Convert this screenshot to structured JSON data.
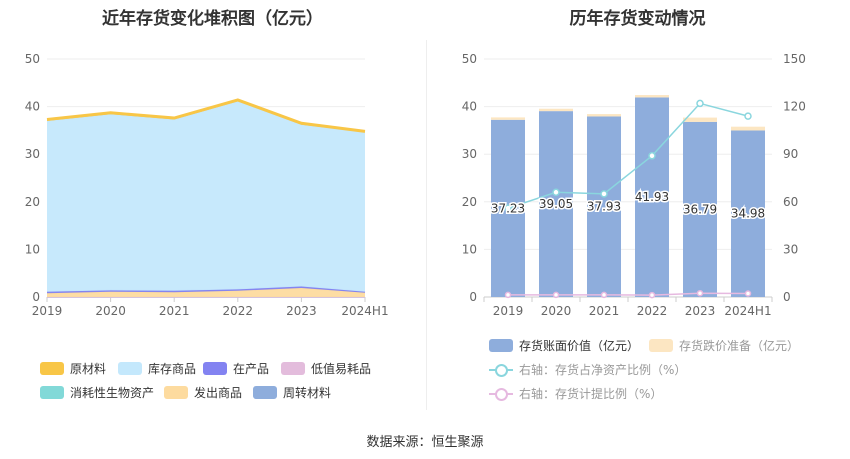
{
  "left_title": "近年存货变化堆积图（亿元）",
  "right_title": "历年存货变动情况",
  "source": "数据来源：恒生聚源",
  "colors": {
    "原材料": "#F8C647",
    "库存商品": "#C4E8FC",
    "在产品": "#8383F1",
    "低值易耗品": "#E3BCDC",
    "消耗性生物资产": "#82D9D8",
    "发出商品": "#FDDB9F",
    "周转材料": "#8EADDC",
    "book_value": "#8EADDC",
    "provision": "#FCE6C2",
    "ratio_line": "#8AD6DE",
    "provision_ratio_line": "#E6B9E0"
  },
  "chart_data": [
    {
      "type": "area",
      "title": "近年存货变化堆积图（亿元）",
      "categories": [
        "2019",
        "2020",
        "2021",
        "2022",
        "2023",
        "2024H1"
      ],
      "ylim": [
        0,
        50
      ],
      "yticks": [
        0,
        10,
        20,
        30,
        40,
        50
      ],
      "stacked": true,
      "series": [
        {
          "name": "原材料",
          "values": [
            0.3,
            0.3,
            0.3,
            0.3,
            0.3,
            0.2
          ]
        },
        {
          "name": "库存商品",
          "values": [
            35.9,
            37.0,
            36.0,
            39.5,
            34.0,
            33.5
          ]
        },
        {
          "name": "在产品",
          "values": [
            0.3,
            0.3,
            0.3,
            0.3,
            0.3,
            0.2
          ]
        },
        {
          "name": "低值易耗品",
          "values": [
            0,
            0,
            0,
            0,
            0,
            0
          ]
        },
        {
          "name": "消耗性生物资产",
          "values": [
            0,
            0,
            0,
            0,
            0,
            0
          ]
        },
        {
          "name": "发出商品",
          "values": [
            0.8,
            1.1,
            1.0,
            1.3,
            1.9,
            0.9
          ]
        },
        {
          "name": "周转材料",
          "values": [
            0,
            0,
            0,
            0,
            0,
            0
          ]
        }
      ],
      "legend": [
        "原材料",
        "库存商品",
        "在产品",
        "低值易耗品",
        "消耗性生物资产",
        "发出商品",
        "周转材料"
      ],
      "legend_position": "bottom",
      "grid": true
    },
    {
      "type": "bar",
      "title": "历年存货变动情况",
      "categories": [
        "2019",
        "2020",
        "2021",
        "2022",
        "2023",
        "2024H1"
      ],
      "ylim": [
        0,
        50
      ],
      "yticks": [
        0,
        10,
        20,
        30,
        40,
        50
      ],
      "y2lim": [
        0,
        150
      ],
      "y2ticks": [
        0,
        30,
        60,
        90,
        120,
        150
      ],
      "series": [
        {
          "name": "存货账面价值（亿元）",
          "type": "bar",
          "axis": "left",
          "values": [
            37.23,
            39.05,
            37.93,
            41.93,
            36.79,
            34.98
          ],
          "labels": [
            "37.23",
            "39.05",
            "37.93",
            "41.93",
            "36.79",
            "34.98"
          ]
        },
        {
          "name": "存货跌价准备（亿元）",
          "type": "bar",
          "axis": "left",
          "stacked": true,
          "values": [
            0.5,
            0.5,
            0.5,
            0.5,
            0.9,
            0.8
          ]
        },
        {
          "name": "右轴：存货占净资产比例（%）",
          "type": "line",
          "axis": "right",
          "values": [
            56,
            66,
            65,
            89,
            122,
            114
          ]
        },
        {
          "name": "右轴：存货计提比例（%）",
          "type": "line",
          "axis": "right",
          "values": [
            1.3,
            1.3,
            1.3,
            1.2,
            2.4,
            2.2
          ]
        }
      ],
      "legend_position": "bottom",
      "grid": true
    }
  ]
}
